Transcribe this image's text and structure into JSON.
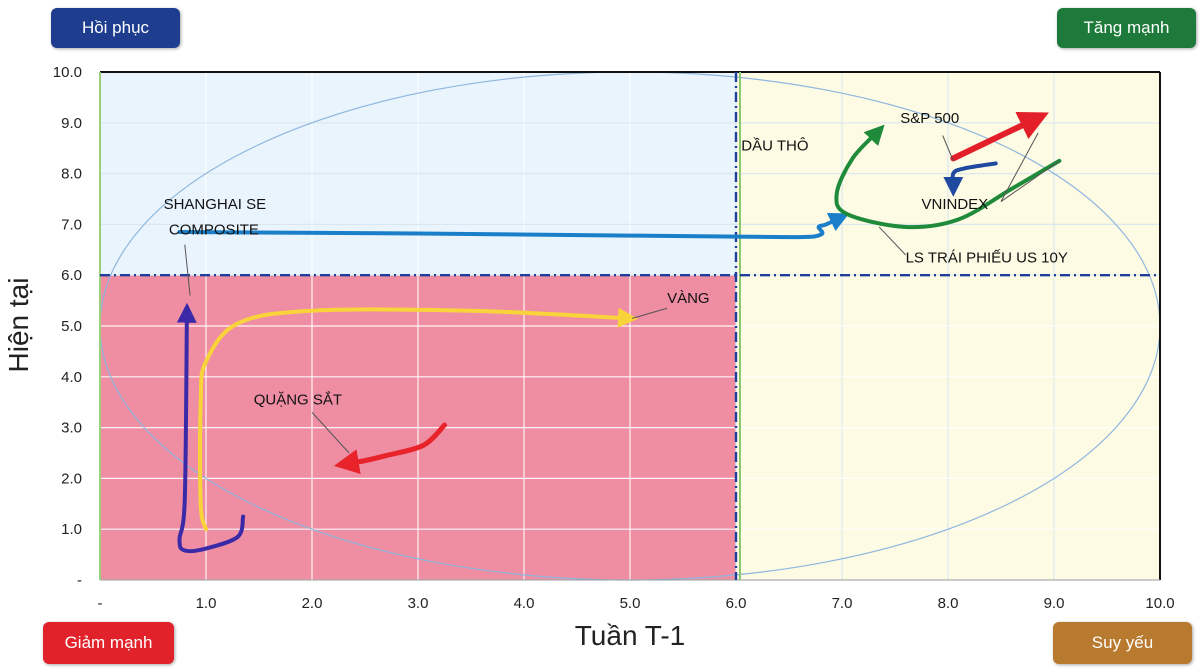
{
  "badges": {
    "top_left": {
      "label": "Hồi phục",
      "color": "#1f3d8f"
    },
    "top_right": {
      "label": "Tăng mạnh",
      "color": "#1e7a3a"
    },
    "bottom_left": {
      "label": "Giảm mạnh",
      "color": "#e2222a"
    },
    "bottom_right": {
      "label": "Suy yếu",
      "color": "#b77a2e"
    }
  },
  "chart_data": {
    "type": "scatter",
    "xlabel": "Tuần T-1",
    "ylabel": "Hiện tại",
    "xlim": [
      0,
      10
    ],
    "ylim": [
      0,
      10
    ],
    "x_ticks": [
      "-",
      "1.0",
      "2.0",
      "3.0",
      "4.0",
      "5.0",
      "6.0",
      "7.0",
      "8.0",
      "9.0",
      "10.0"
    ],
    "y_ticks": [
      "-",
      "1.0",
      "2.0",
      "3.0",
      "4.0",
      "5.0",
      "6.0",
      "7.0",
      "8.0",
      "9.0",
      "10.0"
    ],
    "grid": true,
    "divider": {
      "x": 6.0,
      "y": 6.0
    },
    "quadrant_colors": {
      "top_left": "#eaf4fd",
      "top_right": "#fdfbe4",
      "bottom_left": "#ef8ea3",
      "bottom_right": "#fdfbe4"
    },
    "series": [
      {
        "name": "SHANGHAI SE COMPOSITE",
        "color": "#1a7fc8",
        "points": [
          [
            0.75,
            6.85
          ],
          [
            3.0,
            6.82
          ],
          [
            5.0,
            6.78
          ],
          [
            6.5,
            6.75
          ],
          [
            6.8,
            6.8
          ],
          [
            6.78,
            6.95
          ],
          [
            6.85,
            7.0
          ],
          [
            7.0,
            7.15
          ]
        ]
      },
      {
        "name": "VÀNG",
        "color": "#f8d43a",
        "points": [
          [
            1.0,
            1.0
          ],
          [
            0.95,
            1.5
          ],
          [
            0.95,
            3.5
          ],
          [
            1.0,
            4.3
          ],
          [
            1.3,
            5.05
          ],
          [
            2.0,
            5.3
          ],
          [
            3.5,
            5.3
          ],
          [
            5.0,
            5.15
          ]
        ]
      },
      {
        "name": "QUẶNG SẮT",
        "color": "#e8232a",
        "points": [
          [
            3.25,
            3.05
          ],
          [
            3.05,
            2.65
          ],
          [
            2.7,
            2.45
          ],
          [
            2.5,
            2.35
          ],
          [
            2.3,
            2.28
          ]
        ]
      },
      {
        "name": "LS TRÁI PHIẾU US 10Y",
        "color": "#1e8a3a",
        "points": [
          [
            9.05,
            8.25
          ],
          [
            8.6,
            7.7
          ],
          [
            8.1,
            7.1
          ],
          [
            7.6,
            6.95
          ],
          [
            7.05,
            7.2
          ],
          [
            6.95,
            7.6
          ],
          [
            7.1,
            8.3
          ],
          [
            7.35,
            8.85
          ]
        ]
      },
      {
        "name": "S&P 500",
        "color": "#e3202a",
        "points": [
          [
            8.05,
            8.3
          ],
          [
            8.35,
            8.6
          ],
          [
            8.65,
            8.9
          ],
          [
            8.85,
            9.1
          ]
        ]
      },
      {
        "name": "VNINDEX",
        "color": "#1f4aa0",
        "points": [
          [
            8.45,
            8.2
          ],
          [
            8.15,
            8.1
          ],
          [
            8.05,
            8.0
          ],
          [
            8.05,
            7.7
          ]
        ]
      },
      {
        "name": "",
        "color": "#3a2aa8",
        "points": [
          [
            1.35,
            1.25
          ],
          [
            1.3,
            0.85
          ],
          [
            1.0,
            0.62
          ],
          [
            0.8,
            0.58
          ],
          [
            0.75,
            0.8
          ],
          [
            0.8,
            1.6
          ],
          [
            0.82,
            5.3
          ]
        ]
      }
    ],
    "annotations": [
      {
        "text": "SHANGHAI SE",
        "x": 0.6,
        "y": 7.3
      },
      {
        "text": "COMPOSITE",
        "x": 0.65,
        "y": 6.8
      },
      {
        "text": "DẦU THÔ",
        "x": 6.05,
        "y": 8.45
      },
      {
        "text": "S&P 500",
        "x": 7.55,
        "y": 9.0
      },
      {
        "text": "VNINDEX",
        "x": 7.75,
        "y": 7.3
      },
      {
        "text": "LS TRÁI PHIẾU US 10Y",
        "x": 7.6,
        "y": 6.25
      },
      {
        "text": "VÀNG",
        "x": 5.35,
        "y": 5.45
      },
      {
        "text": "QUẶNG SẮT",
        "x": 1.45,
        "y": 3.45
      }
    ]
  }
}
